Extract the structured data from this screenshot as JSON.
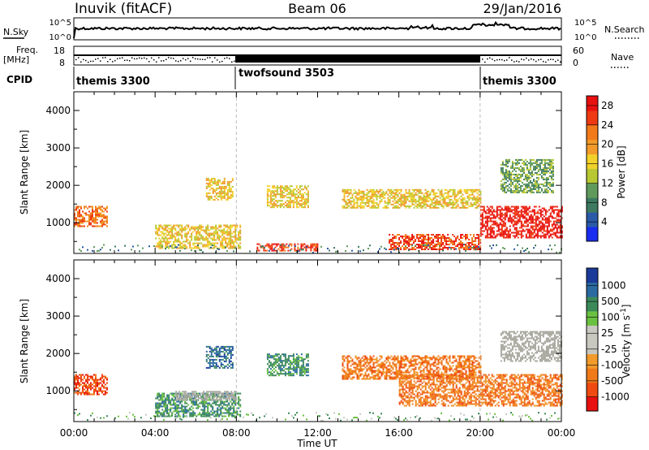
{
  "header": {
    "station": "Inuvik (fitACF)",
    "beam": "Beam 06",
    "date": "29/Jan/2016"
  },
  "noise_panel": {
    "left_label": "N.Sky",
    "left_ticks": [
      "10^5",
      "10^0"
    ],
    "right_ticks": [
      "10^5",
      "10^0"
    ],
    "right_label": "N.Search"
  },
  "freq_panel": {
    "left_label_1": "Freq.",
    "left_label_2": "[MHz]",
    "left_ticks": [
      "18",
      "8"
    ],
    "right_ticks": [
      "60",
      "0"
    ],
    "right_label": "Nave"
  },
  "cpid_panel": {
    "label": "CPID",
    "segments": [
      {
        "name": "themis 3300",
        "start_hour": 0,
        "end_hour": 8
      },
      {
        "name": "twofsound 3503",
        "start_hour": 8,
        "end_hour": 20
      },
      {
        "name": "themis 3300",
        "start_hour": 20,
        "end_hour": 24
      }
    ]
  },
  "time_axis": {
    "label": "Time UT",
    "ticks": [
      "00:00",
      "04:00",
      "08:00",
      "12:00",
      "16:00",
      "20:00",
      "00:00"
    ]
  },
  "colors": {
    "power_scale": [
      "#1a2cf0",
      "#2a5aa8",
      "#3d7a60",
      "#5f9a5a",
      "#b8c832",
      "#f2d12a",
      "#f29a2a",
      "#f27a1a",
      "#ee3a12",
      "#e81010"
    ],
    "velocity_scale": [
      "#e81010",
      "#ee4a12",
      "#f07a1a",
      "#f29a2a",
      "#c8c8c0",
      "#c8c8c0",
      "#6ac040",
      "#3c8a5a",
      "#2a6aa0",
      "#1a3a9a"
    ],
    "ground_scatter": "#a9a9a0"
  },
  "chart_data": [
    {
      "type": "heatmap",
      "title": "",
      "xlabel": "Time UT",
      "ylabel": "Slant Range [km]",
      "xlim": [
        0,
        24
      ],
      "ylim": [
        180,
        4500
      ],
      "y_ticks": [
        "1000",
        "2000",
        "3000",
        "4000"
      ],
      "colorbar": {
        "label": "Power [dB]",
        "range": [
          0,
          30
        ],
        "ticks": [
          "4",
          "8",
          "12",
          "16",
          "20",
          "24",
          "28"
        ]
      },
      "echo_regions": [
        {
          "t_start": 0.0,
          "t_end": 1.6,
          "r_start": 900,
          "r_end": 1450,
          "level": 0.75
        },
        {
          "t_start": 4.0,
          "t_end": 8.2,
          "r_start": 300,
          "r_end": 950,
          "level": 0.6
        },
        {
          "t_start": 6.5,
          "t_end": 7.8,
          "r_start": 1600,
          "r_end": 2200,
          "level": 0.5
        },
        {
          "t_start": 9.0,
          "t_end": 12.0,
          "r_start": 250,
          "r_end": 450,
          "level": 0.85
        },
        {
          "t_start": 9.5,
          "t_end": 11.5,
          "r_start": 1400,
          "r_end": 2000,
          "level": 0.5
        },
        {
          "t_start": 13.2,
          "t_end": 20.0,
          "r_start": 1400,
          "r_end": 1900,
          "level": 0.55
        },
        {
          "t_start": 15.5,
          "t_end": 20.0,
          "r_start": 300,
          "r_end": 700,
          "level": 0.9
        },
        {
          "t_start": 20.0,
          "t_end": 24.0,
          "r_start": 600,
          "r_end": 1450,
          "level": 0.95
        },
        {
          "t_start": 21.0,
          "t_end": 23.6,
          "r_start": 1800,
          "r_end": 2700,
          "level": 0.3
        }
      ]
    },
    {
      "type": "heatmap",
      "title": "",
      "xlabel": "Time UT",
      "ylabel": "Slant Range [km]",
      "xlim": [
        0,
        24
      ],
      "ylim": [
        180,
        4500
      ],
      "y_ticks": [
        "1000",
        "2000",
        "3000",
        "4000"
      ],
      "colorbar": {
        "label": "Velocity [m s^-1]",
        "ticks": [
          "1000",
          "500",
          "100",
          "25",
          "-25",
          "-100",
          "-500",
          "-1000"
        ]
      },
      "echo_regions": [
        {
          "t_start": 0.0,
          "t_end": 1.6,
          "r_start": 900,
          "r_end": 1450,
          "velocity_class": "-500"
        },
        {
          "t_start": 4.0,
          "t_end": 8.2,
          "r_start": 300,
          "r_end": 950,
          "velocity_class": "100"
        },
        {
          "t_start": 5.0,
          "t_end": 8.0,
          "r_start": 750,
          "r_end": 1000,
          "velocity_class": "ground"
        },
        {
          "t_start": 6.5,
          "t_end": 7.8,
          "r_start": 1600,
          "r_end": 2200,
          "velocity_class": "500"
        },
        {
          "t_start": 9.5,
          "t_end": 11.5,
          "r_start": 1400,
          "r_end": 2000,
          "velocity_class": "100"
        },
        {
          "t_start": 13.2,
          "t_end": 20.0,
          "r_start": 1300,
          "r_end": 1950,
          "velocity_class": "-100"
        },
        {
          "t_start": 16.0,
          "t_end": 24.0,
          "r_start": 600,
          "r_end": 1450,
          "velocity_class": "-100"
        },
        {
          "t_start": 21.0,
          "t_end": 24.0,
          "r_start": 1800,
          "r_end": 2600,
          "velocity_class": "ground"
        }
      ]
    }
  ]
}
